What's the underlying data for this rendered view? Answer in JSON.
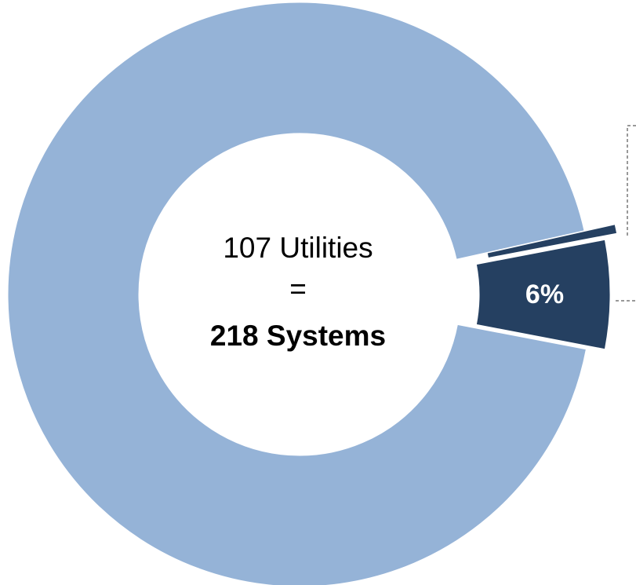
{
  "chart_data": {
    "type": "donut",
    "center_text": [
      "107 Utilities",
      "=",
      "218 Systems"
    ],
    "values": [
      6,
      93.5,
      0.5
    ],
    "value_labels": [
      "6%",
      null,
      null
    ],
    "colors": [
      "#254061",
      "#95b3d7",
      "#254061"
    ]
  }
}
